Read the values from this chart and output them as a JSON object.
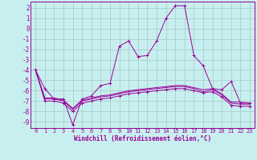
{
  "xlabel": "Windchill (Refroidissement éolien,°C)",
  "bg_color": "#c8efef",
  "grid_color": "#a8cece",
  "line_color": "#990099",
  "xlim": [
    -0.5,
    23.5
  ],
  "ylim": [
    -9.6,
    2.6
  ],
  "yticks": [
    2,
    1,
    0,
    -1,
    -2,
    -3,
    -4,
    -5,
    -6,
    -7,
    -8,
    -9
  ],
  "xticks": [
    0,
    1,
    2,
    3,
    4,
    5,
    6,
    7,
    8,
    9,
    10,
    11,
    12,
    13,
    14,
    15,
    16,
    17,
    18,
    19,
    20,
    21,
    22,
    23
  ],
  "series": [
    {
      "x": [
        0,
        1,
        2,
        3,
        4,
        5,
        6,
        7,
        8,
        9,
        10,
        11,
        12,
        13,
        14,
        15,
        16,
        17,
        18,
        19,
        20,
        21,
        22,
        23
      ],
      "y": [
        -4.0,
        -5.8,
        -6.8,
        -6.8,
        -9.3,
        -6.8,
        -6.5,
        -5.5,
        -5.3,
        -1.7,
        -1.2,
        -2.7,
        -2.6,
        -1.2,
        1.0,
        2.2,
        2.2,
        -2.6,
        -3.6,
        -5.8,
        -5.9,
        -5.1,
        -7.2,
        -7.2
      ],
      "marker": "+"
    },
    {
      "x": [
        0,
        1,
        2,
        3,
        4,
        5,
        6,
        7,
        8,
        9,
        10,
        11,
        12,
        13,
        14,
        15,
        16,
        17,
        18,
        19,
        20,
        21,
        22,
        23
      ],
      "y": [
        -4.0,
        -6.7,
        -6.7,
        -6.9,
        -7.7,
        -6.9,
        -6.7,
        -6.5,
        -6.4,
        -6.2,
        -6.0,
        -5.9,
        -5.8,
        -5.7,
        -5.6,
        -5.5,
        -5.5,
        -5.7,
        -5.9,
        -5.8,
        -6.3,
        -7.1,
        -7.1,
        -7.2
      ],
      "marker": null
    },
    {
      "x": [
        0,
        1,
        2,
        3,
        4,
        5,
        6,
        7,
        8,
        9,
        10,
        11,
        12,
        13,
        14,
        15,
        16,
        17,
        18,
        19,
        20,
        21,
        22,
        23
      ],
      "y": [
        -4.0,
        -6.8,
        -6.8,
        -7.0,
        -7.8,
        -7.0,
        -6.8,
        -6.6,
        -6.5,
        -6.3,
        -6.1,
        -6.0,
        -5.9,
        -5.8,
        -5.7,
        -5.6,
        -5.6,
        -5.8,
        -6.1,
        -5.9,
        -6.4,
        -7.2,
        -7.3,
        -7.3
      ],
      "marker": null
    },
    {
      "x": [
        0,
        1,
        2,
        3,
        4,
        5,
        6,
        7,
        8,
        9,
        10,
        11,
        12,
        13,
        14,
        15,
        16,
        17,
        18,
        19,
        20,
        21,
        22,
        23
      ],
      "y": [
        -4.0,
        -7.0,
        -7.0,
        -7.2,
        -8.0,
        -7.2,
        -7.0,
        -6.8,
        -6.7,
        -6.5,
        -6.3,
        -6.2,
        -6.1,
        -6.0,
        -5.9,
        -5.8,
        -5.8,
        -6.0,
        -6.2,
        -6.1,
        -6.6,
        -7.4,
        -7.5,
        -7.5
      ],
      "marker": "+"
    }
  ]
}
